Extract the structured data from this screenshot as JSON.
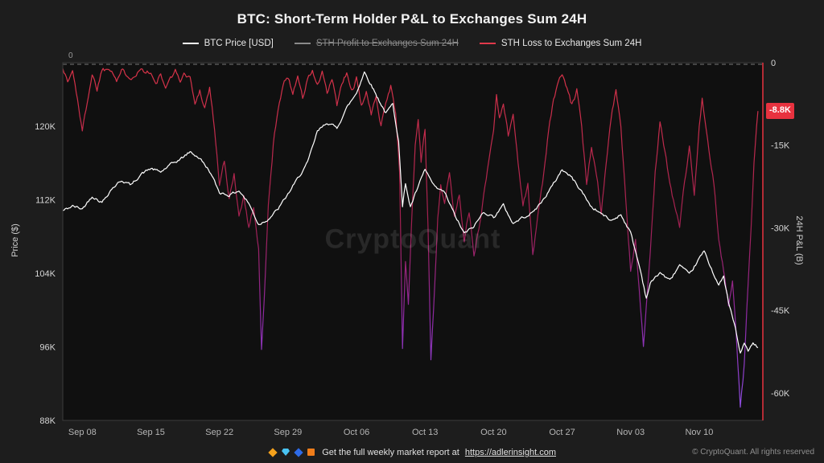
{
  "title": "BTC: Short-Term Holder P&L to Exchanges Sum 24H",
  "watermark": "CryptoQuant",
  "zero_label": "0",
  "legend": {
    "items": [
      {
        "label": "BTC Price [USD]",
        "color": "#ffffff",
        "disabled": false
      },
      {
        "label": "STH Profit to Exchanges Sum 24H",
        "color": "#8a8a8a",
        "disabled": true
      },
      {
        "label": "STH Loss to Exchanges Sum 24H",
        "color": "#e0394b",
        "disabled": false
      }
    ]
  },
  "footer": {
    "report_text": "Get the full weekly market report at",
    "report_link": "https://adlerinsight.com",
    "copyright": "© CryptoQuant. All rights reserved",
    "icons": [
      "orange-diamond",
      "gem",
      "blue-diamond",
      "book"
    ]
  },
  "chart_data": {
    "type": "line",
    "title": "BTC: Short-Term Holder P&L to Exchanges Sum 24H",
    "x": {
      "tick_labels": [
        "Sep 08",
        "Sep 15",
        "Sep 22",
        "Sep 29",
        "Oct 06",
        "Oct 13",
        "Oct 20",
        "Oct 27",
        "Nov 03",
        "Nov 10"
      ],
      "tick_days": [
        2,
        9,
        16,
        23,
        30,
        37,
        44,
        51,
        58,
        65
      ],
      "domain_days": [
        0,
        71.5
      ],
      "day0_label": "Sep 06"
    },
    "y_left": {
      "label": "Price ($)",
      "tick_labels": [
        "120K",
        "112K",
        "104K",
        "96K",
        "88K"
      ],
      "tick_values": [
        120000,
        112000,
        104000,
        96000,
        88000
      ],
      "domain": [
        126900,
        88000
      ]
    },
    "y_right": {
      "label": "24H P&L (B)",
      "tick_labels": [
        "0",
        "-15K",
        "-30K",
        "-45K",
        "-60K"
      ],
      "tick_values": [
        0,
        -15000,
        -30000,
        -45000,
        -60000
      ],
      "domain": [
        0,
        -65000
      ],
      "last_value_badge": {
        "label": "-8.8K",
        "value": -8800,
        "color": "#e8323f"
      }
    },
    "zero_line": {
      "value": 0,
      "axis": "right",
      "style": "dashed"
    },
    "series": [
      {
        "name": "BTC Price [USD]",
        "axis": "left",
        "color": "#ffffff",
        "noise": 260,
        "points": [
          [
            0,
            110800
          ],
          [
            1,
            111300
          ],
          [
            2,
            111000
          ],
          [
            3,
            112400
          ],
          [
            4,
            111700
          ],
          [
            5,
            113200
          ],
          [
            6,
            114100
          ],
          [
            7,
            113600
          ],
          [
            8,
            114800
          ],
          [
            9,
            115400
          ],
          [
            10,
            115000
          ],
          [
            11,
            115800
          ],
          [
            12,
            116400
          ],
          [
            13,
            117200
          ],
          [
            14,
            116500
          ],
          [
            15,
            115100
          ],
          [
            16,
            112800
          ],
          [
            17,
            112500
          ],
          [
            18,
            113000
          ],
          [
            19,
            111600
          ],
          [
            20,
            109300
          ],
          [
            21,
            109900
          ],
          [
            22,
            111000
          ],
          [
            23,
            112600
          ],
          [
            24,
            114300
          ],
          [
            25,
            116000
          ],
          [
            26,
            119400
          ],
          [
            27,
            120400
          ],
          [
            28,
            119800
          ],
          [
            29,
            122000
          ],
          [
            30,
            123600
          ],
          [
            30.8,
            125900
          ],
          [
            31.5,
            124500
          ],
          [
            32.2,
            123000
          ],
          [
            33,
            121400
          ],
          [
            33.7,
            122400
          ],
          [
            34.3,
            118500
          ],
          [
            34.7,
            111200
          ],
          [
            35,
            113800
          ],
          [
            35.5,
            111200
          ],
          [
            36,
            112600
          ],
          [
            37,
            115300
          ],
          [
            38,
            113300
          ],
          [
            39,
            112800
          ],
          [
            40,
            110400
          ],
          [
            41,
            108300
          ],
          [
            42,
            109100
          ],
          [
            43,
            110700
          ],
          [
            44,
            110100
          ],
          [
            45,
            111400
          ],
          [
            46,
            109400
          ],
          [
            47,
            110100
          ],
          [
            48,
            110600
          ],
          [
            49,
            111900
          ],
          [
            50,
            113500
          ],
          [
            51,
            115300
          ],
          [
            52,
            114400
          ],
          [
            53,
            112900
          ],
          [
            54,
            111200
          ],
          [
            55,
            110500
          ],
          [
            56,
            109700
          ],
          [
            57,
            110400
          ],
          [
            58,
            108400
          ],
          [
            59,
            104300
          ],
          [
            59.6,
            101300
          ],
          [
            60,
            102900
          ],
          [
            61,
            104100
          ],
          [
            62,
            103200
          ],
          [
            63,
            104900
          ],
          [
            64,
            103800
          ],
          [
            65,
            105600
          ],
          [
            65.5,
            106400
          ],
          [
            66,
            105100
          ],
          [
            67,
            102700
          ],
          [
            67.5,
            103600
          ],
          [
            68,
            100800
          ],
          [
            68.7,
            98000
          ],
          [
            69.2,
            95200
          ],
          [
            69.6,
            96500
          ],
          [
            70,
            95500
          ],
          [
            70.5,
            96400
          ],
          [
            71,
            95900
          ]
        ]
      },
      {
        "name": "STH Profit to Exchanges Sum 24H",
        "axis": "right",
        "color": "#8a8a8a",
        "hidden": true,
        "noise": 0,
        "points": []
      },
      {
        "name": "STH Loss to Exchanges Sum 24H",
        "axis": "right",
        "noise": 800,
        "gradient": [
          "#dc3448",
          "#a02050",
          "#8d2aa8",
          "#8e52e8"
        ],
        "points": [
          [
            0,
            -800
          ],
          [
            0.5,
            -3500
          ],
          [
            1,
            -1500
          ],
          [
            1.5,
            -6500
          ],
          [
            2,
            -12500
          ],
          [
            2.5,
            -7000
          ],
          [
            3,
            -2000
          ],
          [
            3.5,
            -4800
          ],
          [
            4,
            -1200
          ],
          [
            5,
            -1000
          ],
          [
            5.5,
            -3200
          ],
          [
            6,
            -1500
          ],
          [
            7,
            -2600
          ],
          [
            8,
            -1200
          ],
          [
            9,
            -1800
          ],
          [
            9.5,
            -4200
          ],
          [
            10,
            -2000
          ],
          [
            10.5,
            -5200
          ],
          [
            11,
            -2500
          ],
          [
            11.5,
            -1500
          ],
          [
            12,
            -3200
          ],
          [
            12.5,
            -2000
          ],
          [
            13,
            -2600
          ],
          [
            13.5,
            -7600
          ],
          [
            14,
            -5000
          ],
          [
            14.5,
            -8200
          ],
          [
            15,
            -4500
          ],
          [
            15.5,
            -12000
          ],
          [
            16,
            -22000
          ],
          [
            16.5,
            -18000
          ],
          [
            17,
            -25000
          ],
          [
            17.5,
            -20000
          ],
          [
            18,
            -28000
          ],
          [
            18.5,
            -24000
          ],
          [
            19,
            -30000
          ],
          [
            19.5,
            -26000
          ],
          [
            20,
            -34000
          ],
          [
            20.3,
            -52500
          ],
          [
            20.7,
            -38000
          ],
          [
            21,
            -26000
          ],
          [
            21.5,
            -15000
          ],
          [
            22,
            -8000
          ],
          [
            22.5,
            -4000
          ],
          [
            23,
            -2500
          ],
          [
            23.5,
            -5600
          ],
          [
            24,
            -2000
          ],
          [
            24.5,
            -6600
          ],
          [
            25,
            -3000
          ],
          [
            25.5,
            -1500
          ],
          [
            26,
            -4200
          ],
          [
            26.5,
            -2000
          ],
          [
            27,
            -5600
          ],
          [
            27.5,
            -3000
          ],
          [
            28,
            -7600
          ],
          [
            28.5,
            -4000
          ],
          [
            29,
            -2000
          ],
          [
            29.5,
            -5200
          ],
          [
            30,
            -3000
          ],
          [
            30.5,
            -8200
          ],
          [
            31,
            -5000
          ],
          [
            31.5,
            -9600
          ],
          [
            32,
            -6000
          ],
          [
            32.5,
            -11200
          ],
          [
            33,
            -7000
          ],
          [
            33.5,
            -4200
          ],
          [
            34,
            -9000
          ],
          [
            34.4,
            -20000
          ],
          [
            34.7,
            -52000
          ],
          [
            35,
            -36000
          ],
          [
            35.3,
            -44000
          ],
          [
            35.6,
            -30000
          ],
          [
            36,
            -15000
          ],
          [
            36.3,
            -10000
          ],
          [
            36.6,
            -18000
          ],
          [
            37,
            -12000
          ],
          [
            37.3,
            -30000
          ],
          [
            37.6,
            -53500
          ],
          [
            38,
            -40000
          ],
          [
            38.3,
            -28000
          ],
          [
            38.6,
            -22000
          ],
          [
            39,
            -26000
          ],
          [
            39.5,
            -20000
          ],
          [
            40,
            -28000
          ],
          [
            40.5,
            -24000
          ],
          [
            41,
            -32000
          ],
          [
            41.5,
            -27000
          ],
          [
            42,
            -35200
          ],
          [
            42.5,
            -30000
          ],
          [
            43,
            -24000
          ],
          [
            43.5,
            -18000
          ],
          [
            44,
            -12000
          ],
          [
            44.3,
            -6000
          ],
          [
            44.6,
            -10000
          ],
          [
            45,
            -7000
          ],
          [
            45.5,
            -13400
          ],
          [
            46,
            -9000
          ],
          [
            46.5,
            -18000
          ],
          [
            47,
            -26000
          ],
          [
            47.5,
            -22000
          ],
          [
            48,
            -35000
          ],
          [
            48.5,
            -28000
          ],
          [
            49,
            -22000
          ],
          [
            49.5,
            -14000
          ],
          [
            50,
            -8000
          ],
          [
            50.5,
            -4000
          ],
          [
            51,
            -2000
          ],
          [
            51.5,
            -5000
          ],
          [
            52,
            -7800
          ],
          [
            52.5,
            -5000
          ],
          [
            53,
            -12000
          ],
          [
            53.5,
            -22000
          ],
          [
            54,
            -15000
          ],
          [
            54.5,
            -20000
          ],
          [
            55,
            -27000
          ],
          [
            55.5,
            -18000
          ],
          [
            56,
            -10000
          ],
          [
            56.5,
            -4800
          ],
          [
            57,
            -12000
          ],
          [
            57.5,
            -25000
          ],
          [
            58,
            -38000
          ],
          [
            58.5,
            -32000
          ],
          [
            59,
            -44000
          ],
          [
            59.3,
            -51500
          ],
          [
            59.7,
            -42000
          ],
          [
            60,
            -35000
          ],
          [
            60.5,
            -20000
          ],
          [
            61,
            -10500
          ],
          [
            61.5,
            -16000
          ],
          [
            62,
            -22000
          ],
          [
            62.5,
            -26000
          ],
          [
            63,
            -29600
          ],
          [
            63.5,
            -22000
          ],
          [
            64,
            -15000
          ],
          [
            64.5,
            -24000
          ],
          [
            65,
            -12000
          ],
          [
            65.3,
            -6500
          ],
          [
            65.7,
            -12000
          ],
          [
            66,
            -16500
          ],
          [
            66.5,
            -22000
          ],
          [
            67,
            -32000
          ],
          [
            67.5,
            -38000
          ],
          [
            68,
            -44000
          ],
          [
            68.4,
            -40000
          ],
          [
            68.8,
            -50000
          ],
          [
            69.2,
            -62500
          ],
          [
            69.6,
            -55000
          ],
          [
            70,
            -40000
          ],
          [
            70.3,
            -30000
          ],
          [
            70.6,
            -18000
          ],
          [
            71,
            -8800
          ]
        ]
      }
    ]
  }
}
